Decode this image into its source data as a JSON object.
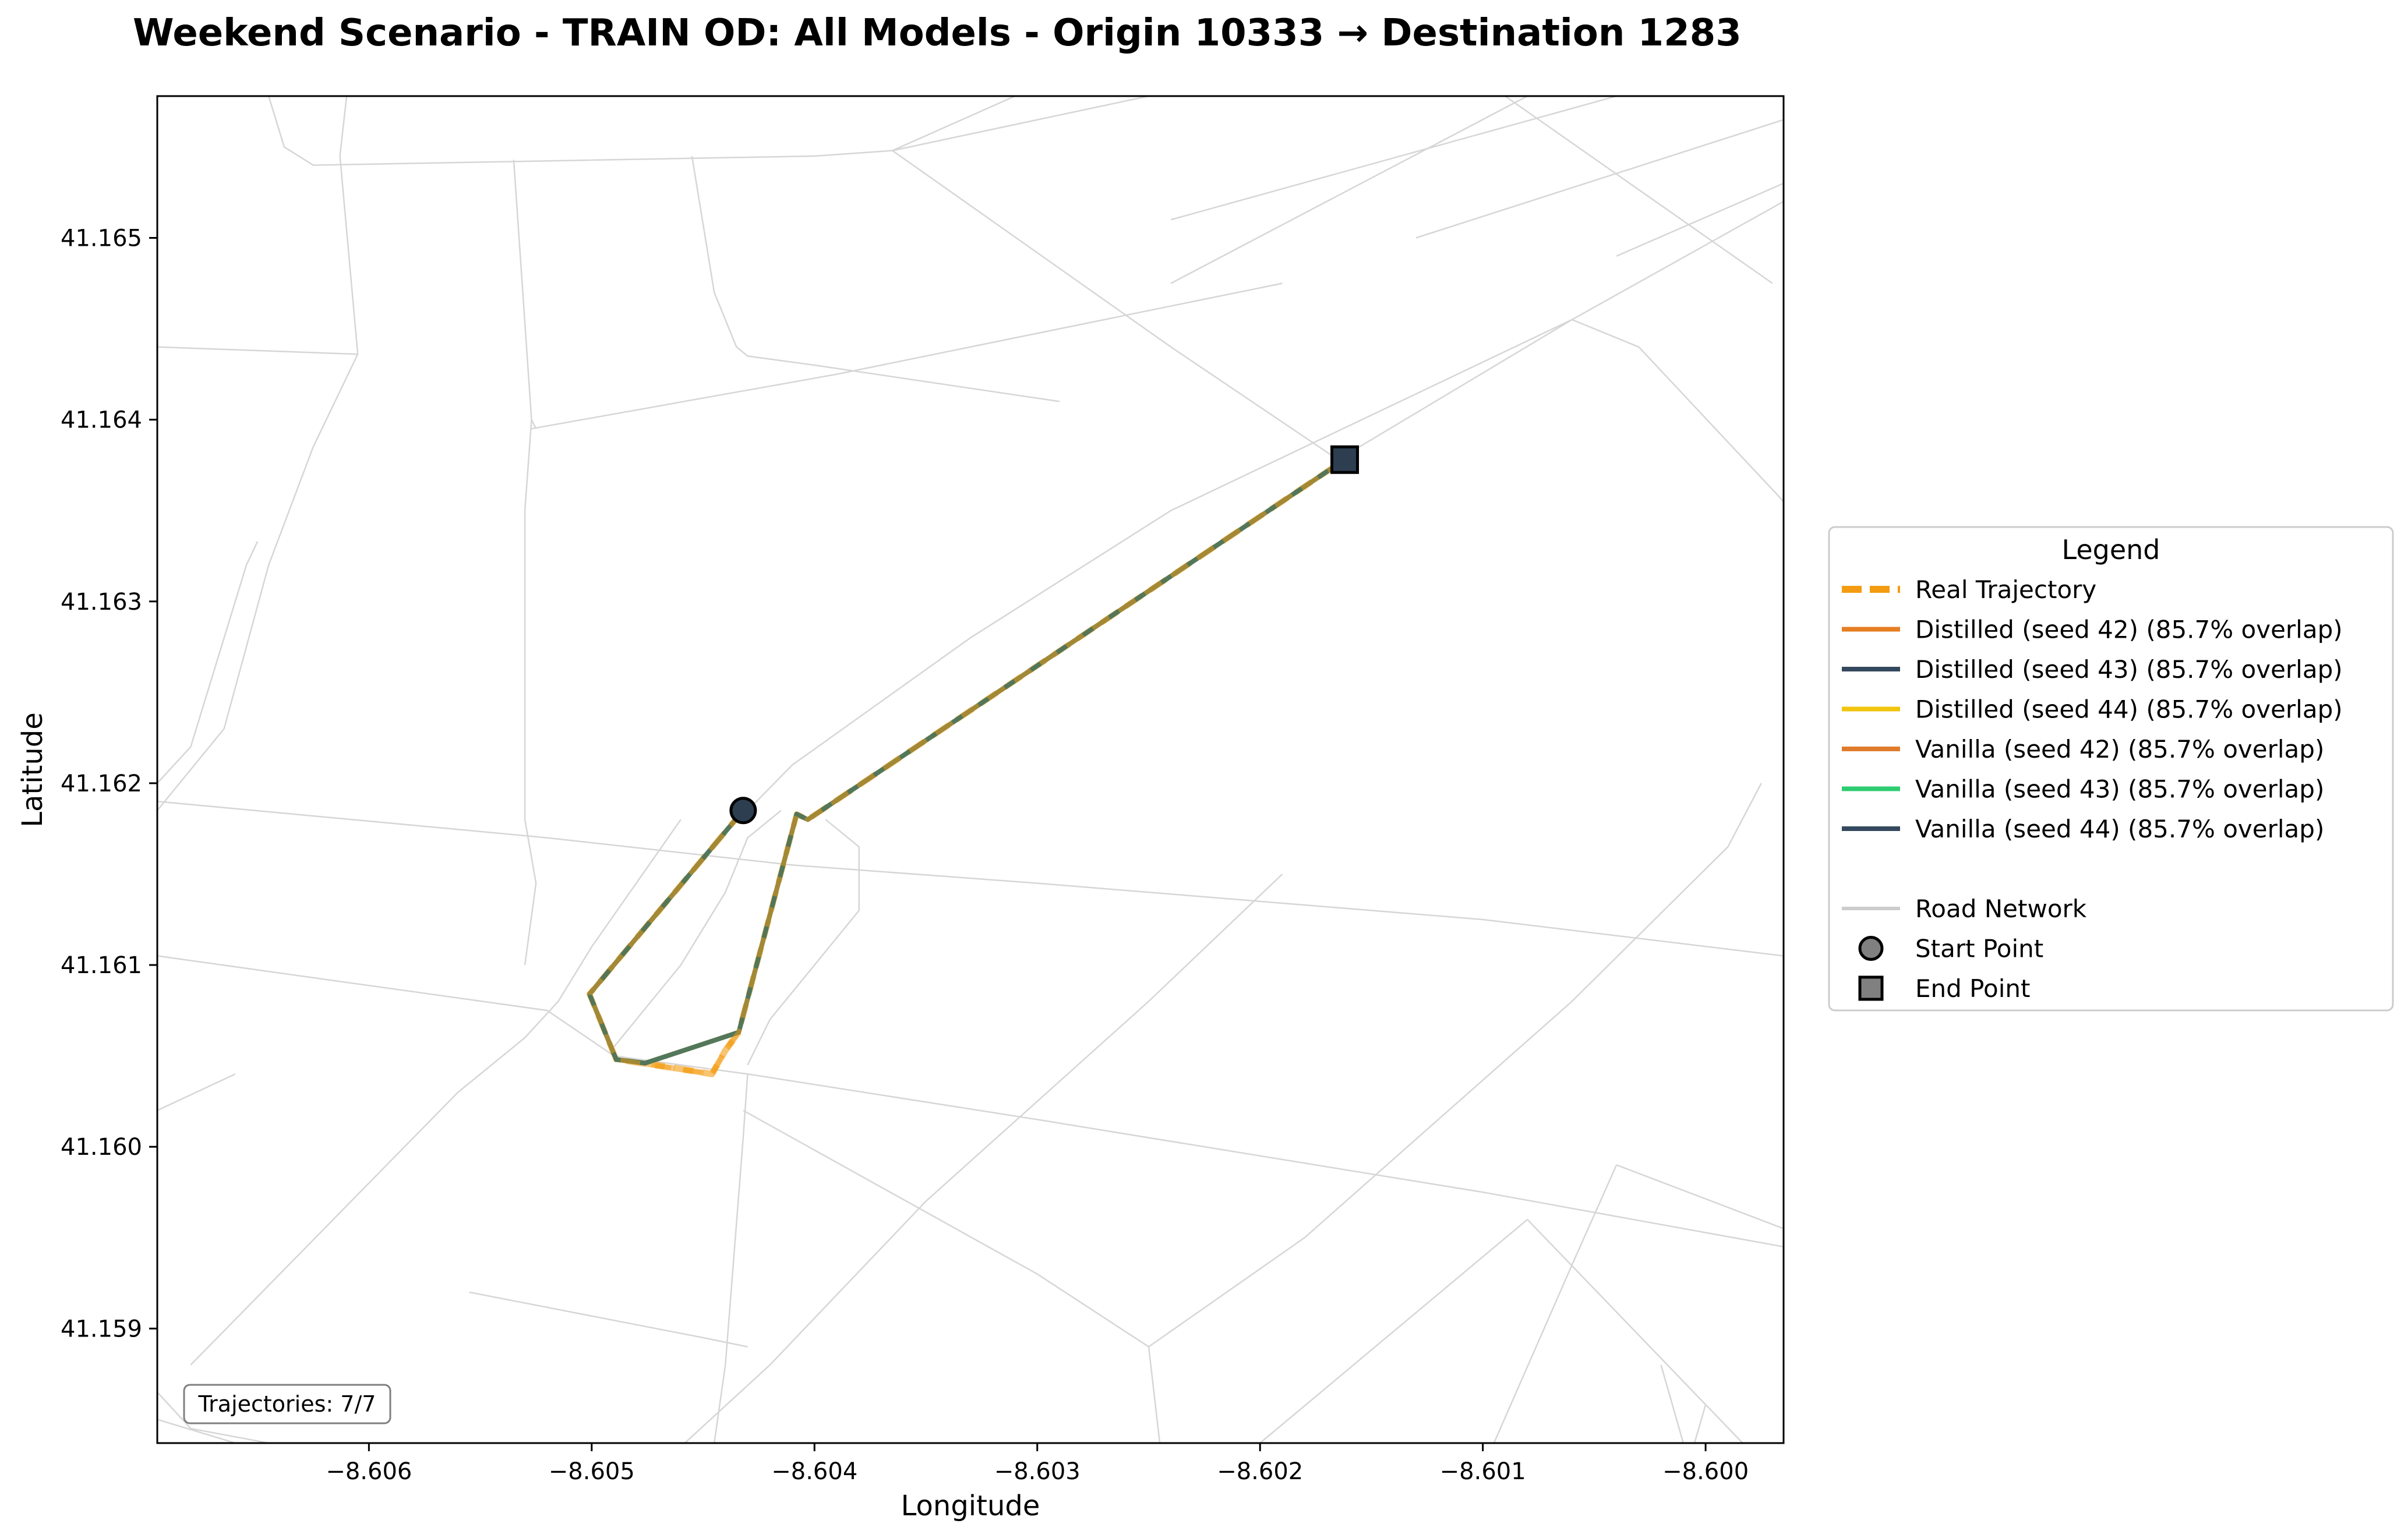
{
  "chart_data": {
    "type": "line",
    "title": "Weekend Scenario - TRAIN OD: All Models - Origin 10333 → Destination 1283",
    "xlabel": "Longitude",
    "ylabel": "Latitude",
    "xlim": [
      -8.60695,
      -8.59965
    ],
    "ylim": [
      41.15837,
      41.16578
    ],
    "xticks": [
      -8.606,
      -8.605,
      -8.604,
      -8.603,
      -8.602,
      -8.601,
      -8.6
    ],
    "xtick_labels": [
      "−8.606",
      "−8.605",
      "−8.604",
      "−8.603",
      "−8.602",
      "−8.601",
      "−8.600"
    ],
    "yticks": [
      41.159,
      41.16,
      41.161,
      41.162,
      41.163,
      41.164,
      41.165
    ],
    "ytick_labels": [
      "41.159",
      "41.160",
      "41.161",
      "41.162",
      "41.163",
      "41.164",
      "41.165"
    ],
    "grid": false,
    "legend_placement": "outside-right",
    "legend_title": "Legend",
    "series": [
      {
        "name": "Real Trajectory",
        "color": "#F39C12",
        "style": "dashed",
        "x": [
          -8.60432,
          -8.60501,
          -8.60489,
          -8.60446,
          -8.6044,
          -8.60434,
          -8.60408,
          -8.60403,
          -8.60162
        ],
        "y": [
          41.16185,
          41.16084,
          41.16048,
          41.1604,
          41.16053,
          41.16063,
          41.16183,
          41.1618,
          41.16378
        ]
      },
      {
        "name": "Distilled (seed 42) (85.7% overlap)",
        "color": "#E67E22",
        "style": "solid"
      },
      {
        "name": "Distilled (seed 43) (85.7% overlap)",
        "color": "#34495E",
        "style": "solid"
      },
      {
        "name": "Distilled (seed 44) (85.7% overlap)",
        "color": "#F1C40F",
        "style": "solid"
      },
      {
        "name": "Vanilla (seed 42) (85.7% overlap)",
        "color": "#E07B2B",
        "style": "solid"
      },
      {
        "name": "Vanilla (seed 43) (85.7% overlap)",
        "color": "#2ECC71",
        "style": "solid"
      },
      {
        "name": "Vanilla (seed 44) (85.7% overlap)",
        "color": "#34495E",
        "style": "solid"
      }
    ],
    "model_path": {
      "x": [
        -8.60432,
        -8.60501,
        -8.60489,
        -8.60476,
        -8.60434,
        -8.60408,
        -8.60403,
        -8.60162
      ],
      "y": [
        41.16185,
        41.16084,
        41.16048,
        41.16046,
        41.16063,
        41.16183,
        41.1618,
        41.16378
      ]
    },
    "real_detour": {
      "x": [
        -8.60476,
        -8.60446,
        -8.6044,
        -8.60434
      ],
      "y": [
        41.16046,
        41.1604,
        41.16053,
        41.16063
      ]
    },
    "start_point": {
      "x": -8.60432,
      "y": 41.16185,
      "color": "#2C3E50"
    },
    "end_point": {
      "x": -8.60162,
      "y": 41.16378,
      "color": "#2C3E50"
    },
    "extra_legend": [
      {
        "name": "Road Network",
        "color": "#cccccc",
        "kind": "line"
      },
      {
        "name": "Start Point",
        "color": "#808080",
        "kind": "circle"
      },
      {
        "name": "End Point",
        "color": "#808080",
        "kind": "square"
      }
    ],
    "annotation": "Trajectories: 7/7",
    "roads": [
      [
        [
          -8.60645,
          41.16578
        ],
        [
          -8.60638,
          41.1655
        ],
        [
          -8.60625,
          41.1654
        ],
        [
          -8.604,
          41.16545
        ],
        [
          -8.60365,
          41.16548
        ]
      ],
      [
        [
          -8.6061,
          41.16578
        ],
        [
          -8.60613,
          41.16545
        ]
      ],
      [
        [
          -8.60365,
          41.16548
        ],
        [
          -8.6031,
          41.16578
        ]
      ],
      [
        [
          -8.60365,
          41.16548
        ],
        [
          -8.6025,
          41.16578
        ]
      ],
      [
        [
          -8.60365,
          41.16548
        ],
        [
          -8.6024,
          41.1644
        ],
        [
          -8.60165,
          41.16378
        ]
      ],
      [
        [
          -8.60613,
          41.16545
        ],
        [
          -8.60605,
          41.16436
        ],
        [
          -8.60625,
          41.16385
        ],
        [
          -8.60645,
          41.1632
        ]
      ],
      [
        [
          -8.60695,
          41.1644
        ],
        [
          -8.60605,
          41.16436
        ]
      ],
      [
        [
          -8.6065,
          41.16333
        ],
        [
          -8.60655,
          41.1632
        ],
        [
          -8.6068,
          41.1622
        ],
        [
          -8.60695,
          41.162
        ]
      ],
      [
        [
          -8.60645,
          41.1632
        ],
        [
          -8.60665,
          41.1623
        ],
        [
          -8.60695,
          41.16185
        ]
      ],
      [
        [
          -8.60455,
          41.16545
        ],
        [
          -8.60445,
          41.1647
        ],
        [
          -8.60435,
          41.1644
        ],
        [
          -8.6043,
          41.16435
        ],
        [
          -8.604,
          41.1643
        ],
        [
          -8.6029,
          41.1641
        ]
      ],
      [
        [
          -8.60535,
          41.16543
        ],
        [
          -8.60527,
          41.164
        ],
        [
          -8.6053,
          41.1635
        ],
        [
          -8.6053,
          41.1618
        ],
        [
          -8.60525,
          41.16145
        ],
        [
          -8.6053,
          41.161
        ]
      ],
      [
        [
          -8.60527,
          41.164
        ],
        [
          -8.60525,
          41.16395
        ]
      ],
      [
        [
          -8.60527,
          41.16395
        ],
        [
          -8.6039,
          41.16425
        ],
        [
          -8.6019,
          41.16475
        ]
      ],
      [
        [
          -8.6024,
          41.16475
        ],
        [
          -8.6008,
          41.16578
        ]
      ],
      [
        [
          -8.6024,
          41.1651
        ],
        [
          -8.6004,
          41.16578
        ]
      ],
      [
        [
          -8.6013,
          41.165
        ],
        [
          -8.59965,
          41.16565
        ]
      ],
      [
        [
          -8.6009,
          41.16578
        ],
        [
          -8.5997,
          41.16475
        ]
      ],
      [
        [
          -8.6004,
          41.1649
        ],
        [
          -8.59965,
          41.1653
        ]
      ],
      [
        [
          -8.60165,
          41.16378
        ],
        [
          -8.6006,
          41.16455
        ],
        [
          -8.59965,
          41.1652
        ]
      ],
      [
        [
          -8.6006,
          41.16455
        ],
        [
          -8.6012,
          41.1642
        ],
        [
          -8.6024,
          41.1635
        ],
        [
          -8.6033,
          41.1628
        ],
        [
          -8.6041,
          41.1621
        ],
        [
          -8.6043,
          41.16185
        ]
      ],
      [
        [
          -8.6006,
          41.16455
        ],
        [
          -8.6003,
          41.1644
        ],
        [
          -8.59965,
          41.16355
        ]
      ],
      [
        [
          -8.60695,
          41.1619
        ],
        [
          -8.6052,
          41.1617
        ],
        [
          -8.6041,
          41.16155
        ],
        [
          -8.603,
          41.16145
        ],
        [
          -8.601,
          41.16125
        ],
        [
          -8.59965,
          41.16105
        ]
      ],
      [
        [
          -8.60695,
          41.16105
        ],
        [
          -8.6052,
          41.16075
        ],
        [
          -8.6049,
          41.1605
        ],
        [
          -8.6043,
          41.1604
        ],
        [
          -8.603,
          41.16015
        ],
        [
          -8.601,
          41.15975
        ],
        [
          -8.59965,
          41.15945
        ]
      ],
      [
        [
          -8.6043,
          41.1604
        ],
        [
          -8.60432,
          41.16005
        ],
        [
          -8.6044,
          41.1588
        ],
        [
          -8.60445,
          41.15837
        ]
      ],
      [
        [
          -8.60432,
          41.1602
        ],
        [
          -8.603,
          41.1593
        ],
        [
          -8.6025,
          41.1589
        ]
      ],
      [
        [
          -8.60415,
          41.16185
        ],
        [
          -8.6043,
          41.1617
        ],
        [
          -8.6044,
          41.1614
        ],
        [
          -8.6046,
          41.161
        ],
        [
          -8.6049,
          41.16055
        ]
      ],
      [
        [
          -8.6046,
          41.1618
        ],
        [
          -8.6048,
          41.16145
        ],
        [
          -8.605,
          41.1611
        ],
        [
          -8.60515,
          41.1608
        ],
        [
          -8.6053,
          41.1606
        ],
        [
          -8.6056,
          41.1603
        ],
        [
          -8.606,
          41.1598
        ],
        [
          -8.6068,
          41.1588
        ]
      ],
      [
        [
          -8.60395,
          41.1618
        ],
        [
          -8.6038,
          41.16165
        ],
        [
          -8.6038,
          41.1613
        ],
        [
          -8.604,
          41.161
        ],
        [
          -8.6042,
          41.1607
        ],
        [
          -8.6043,
          41.16045
        ]
      ],
      [
        [
          -8.60645,
          41.15837
        ],
        [
          -8.6068,
          41.15845
        ],
        [
          -8.60695,
          41.15865
        ]
      ],
      [
        [
          -8.6066,
          41.15837
        ],
        [
          -8.60695,
          41.1585
        ]
      ],
      [
        [
          -8.60695,
          41.1602
        ],
        [
          -8.6066,
          41.1604
        ]
      ],
      [
        [
          -8.60555,
          41.1592
        ],
        [
          -8.6045,
          41.15895
        ],
        [
          -8.6043,
          41.1589
        ]
      ],
      [
        [
          -8.6019,
          41.1615
        ],
        [
          -8.6025,
          41.1608
        ],
        [
          -8.6035,
          41.1597
        ],
        [
          -8.6042,
          41.1588
        ],
        [
          -8.605,
          41.1579
        ]
      ],
      [
        [
          -8.6025,
          41.1589
        ],
        [
          -8.60245,
          41.15837
        ]
      ],
      [
        [
          -8.6025,
          41.1589
        ],
        [
          -8.6018,
          41.1595
        ],
        [
          -8.6006,
          41.1608
        ],
        [
          -8.5999,
          41.16165
        ],
        [
          -8.59975,
          41.162
        ]
      ],
      [
        [
          -8.6004,
          41.1599
        ],
        [
          -8.6006,
          41.15935
        ],
        [
          -8.60095,
          41.15837
        ]
      ],
      [
        [
          -8.6008,
          41.1596
        ],
        [
          -8.602,
          41.15837
        ]
      ],
      [
        [
          -8.6004,
          41.1599
        ],
        [
          -8.59965,
          41.15955
        ]
      ],
      [
        [
          -8.6002,
          41.1588
        ],
        [
          -8.6001,
          41.15837
        ]
      ],
      [
        [
          -8.60005,
          41.15837
        ],
        [
          -8.6,
          41.15858
        ]
      ],
      [
        [
          -8.6008,
          41.1596
        ],
        [
          -8.5997,
          41.1582
        ]
      ]
    ]
  }
}
